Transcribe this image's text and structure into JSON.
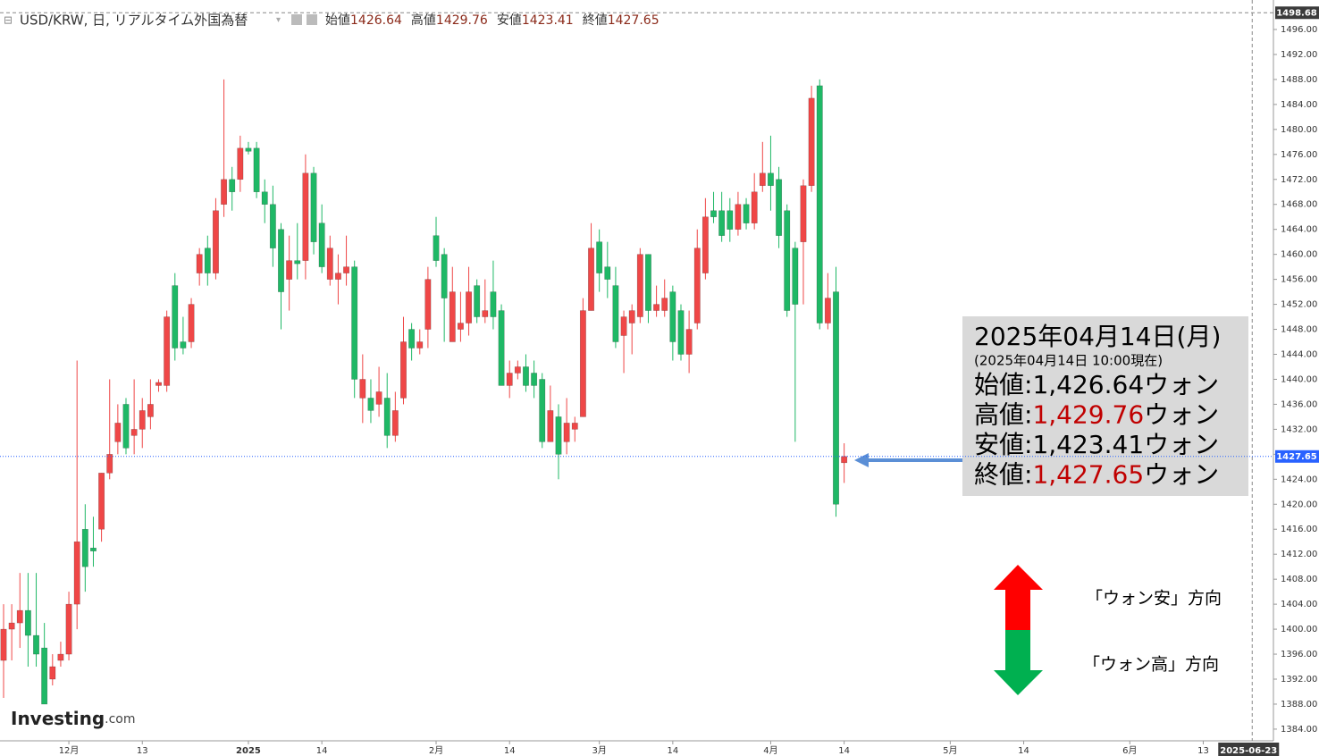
{
  "chart_data": {
    "type": "candlestick",
    "symbol": "USD/KRW, 日, リアルタイム外国為替",
    "ohlc_labels": [
      "始値",
      "高値",
      "安値",
      "終値"
    ],
    "up_color": "#ef4747",
    "down_color": "#1fb866",
    "open": [
      1395,
      1400,
      1401,
      1403,
      1399,
      1397,
      1392,
      1395,
      1396,
      1404,
      1416,
      1413,
      1416,
      1425,
      1430,
      1436,
      1431,
      1432,
      1434,
      1439,
      1439,
      1455,
      1446,
      1446,
      1457,
      1461,
      1457,
      1468,
      1472,
      1472,
      1477,
      1477,
      1470,
      1468,
      1464,
      1456,
      1459,
      1459,
      1473,
      1465,
      1456,
      1456,
      1457,
      1458,
      1437,
      1437,
      1436,
      1437,
      1431,
      1437,
      1448,
      1445,
      1448,
      1463,
      1460,
      1446,
      1448,
      1449,
      1455,
      1450,
      1454,
      1451,
      1439,
      1441,
      1442,
      1441,
      1440,
      1430,
      1434,
      1430,
      1432,
      1434,
      1451,
      1462,
      1458,
      1455,
      1447,
      1449,
      1450,
      1460,
      1451,
      1451,
      1454,
      1451,
      1444,
      1449,
      1457,
      1467,
      1467,
      1467,
      1464,
      1468,
      1465,
      1471,
      1473,
      1472,
      1467,
      1461,
      1462,
      1471,
      1487,
      1449,
      1454,
      1426.64
    ],
    "high": [
      1404,
      1404,
      1409,
      1409,
      1409,
      1401,
      1396,
      1398,
      1406,
      1443,
      1420,
      1418,
      1425,
      1440,
      1436,
      1437,
      1440,
      1437,
      1440,
      1440,
      1451,
      1457,
      1450,
      1453,
      1461,
      1463,
      1469,
      1488,
      1474,
      1479,
      1478,
      1478,
      1472,
      1471,
      1465,
      1463,
      1465,
      1476,
      1474,
      1468,
      1463,
      1460,
      1463,
      1459,
      1444,
      1440,
      1442,
      1441,
      1438,
      1450,
      1449,
      1448,
      1458,
      1466,
      1461,
      1458,
      1454,
      1458,
      1456,
      1456,
      1459,
      1452,
      1443,
      1443,
      1444,
      1443,
      1441,
      1439,
      1436,
      1437,
      1434,
      1453,
      1465,
      1464,
      1462,
      1458,
      1451,
      1452,
      1461,
      1460,
      1455,
      1456,
      1455,
      1452,
      1451,
      1464,
      1469,
      1470,
      1470,
      1469,
      1470,
      1469,
      1473,
      1478,
      1479,
      1474,
      1468,
      1462,
      1472,
      1487,
      1488,
      1457,
      1458,
      1429.76
    ],
    "low": [
      1389,
      1395,
      1397,
      1394,
      1394,
      1388,
      1391,
      1394,
      1395,
      1400,
      1406,
      1410,
      1414,
      1424,
      1428,
      1428,
      1428,
      1429,
      1432,
      1438,
      1438,
      1443,
      1444,
      1445,
      1455,
      1455,
      1456,
      1466,
      1467,
      1470,
      1476,
      1469,
      1465,
      1458,
      1448,
      1451,
      1456,
      1456,
      1460,
      1457,
      1455,
      1452,
      1455,
      1437,
      1433,
      1433,
      1434,
      1429,
      1430,
      1436,
      1443,
      1444,
      1445,
      1458,
      1446,
      1446,
      1446,
      1447,
      1449,
      1449,
      1448,
      1439,
      1437,
      1440,
      1438,
      1437,
      1429,
      1430,
      1424,
      1428,
      1430,
      1434,
      1451,
      1454,
      1453,
      1445,
      1441,
      1444,
      1449,
      1449,
      1450,
      1450,
      1443,
      1443,
      1441,
      1448,
      1456,
      1465,
      1462,
      1462,
      1463,
      1464,
      1464,
      1470,
      1467,
      1461,
      1450,
      1430,
      1452,
      1470,
      1448,
      1448,
      1418,
      1423.41
    ],
    "close": [
      1400,
      1401,
      1403,
      1399,
      1396,
      1388,
      1394,
      1396,
      1404,
      1414,
      1410,
      1412.5,
      1425,
      1428,
      1433,
      1429,
      1432,
      1435,
      1436,
      1439.5,
      1450,
      1445,
      1445,
      1452,
      1460,
      1457,
      1467,
      1472,
      1470,
      1477,
      1476.5,
      1470,
      1468,
      1461,
      1454,
      1459,
      1458.5,
      1473,
      1462,
      1458,
      1461,
      1457,
      1458,
      1440,
      1440,
      1435,
      1438,
      1431,
      1435,
      1446,
      1445,
      1446,
      1456,
      1459,
      1453,
      1454,
      1449,
      1454,
      1450,
      1451,
      1450,
      1439,
      1441,
      1442,
      1439,
      1439,
      1430,
      1435,
      1428,
      1433,
      1433,
      1451,
      1461,
      1457,
      1456,
      1446,
      1450,
      1451,
      1460,
      1451,
      1452,
      1453,
      1446,
      1444,
      1448,
      1461,
      1466,
      1466,
      1463,
      1464,
      1468,
      1465,
      1470,
      1473,
      1471,
      1463,
      1451,
      1452,
      1471,
      1485,
      1449,
      1453,
      1420,
      1427.65
    ],
    "xlim": [
      -0.438,
      155.6
    ],
    "xticks": [
      {
        "value": 8,
        "label": "12月"
      },
      {
        "value": 17,
        "label": "13"
      },
      {
        "value": 30,
        "label": "2025"
      },
      {
        "value": 39,
        "label": "14"
      },
      {
        "value": 53,
        "label": "2月"
      },
      {
        "value": 62,
        "label": "14"
      },
      {
        "value": 73,
        "label": "3月"
      },
      {
        "value": 82,
        "label": "14"
      },
      {
        "value": 94,
        "label": "4月"
      },
      {
        "value": 103,
        "label": "14"
      },
      {
        "value": 116,
        "label": "5月"
      },
      {
        "value": 125,
        "label": "14"
      },
      {
        "value": 138,
        "label": "6月"
      },
      {
        "value": 147,
        "label": "13"
      }
    ],
    "ylim": [
      1382.13,
      1500.72
    ],
    "yticks": [
      {
        "value": 1384,
        "label": "1384.00"
      },
      {
        "value": 1388,
        "label": "1388.00"
      },
      {
        "value": 1392,
        "label": "1392.00"
      },
      {
        "value": 1396,
        "label": "1396.00"
      },
      {
        "value": 1400,
        "label": "1400.00"
      },
      {
        "value": 1404,
        "label": "1404.00"
      },
      {
        "value": 1408,
        "label": "1408.00"
      },
      {
        "value": 1412,
        "label": "1412.00"
      },
      {
        "value": 1416,
        "label": "1416.00"
      },
      {
        "value": 1420,
        "label": "1420.00"
      },
      {
        "value": 1424,
        "label": "1424.00"
      },
      {
        "value": 1428,
        "label": "1428.00"
      },
      {
        "value": 1432,
        "label": "1432.00"
      },
      {
        "value": 1436,
        "label": "1436.00"
      },
      {
        "value": 1440,
        "label": "1440.00"
      },
      {
        "value": 1444,
        "label": "1444.00"
      },
      {
        "value": 1448,
        "label": "1448.00"
      },
      {
        "value": 1452,
        "label": "1452.00"
      },
      {
        "value": 1456,
        "label": "1456.00"
      },
      {
        "value": 1460,
        "label": "1460.00"
      },
      {
        "value": 1464,
        "label": "1464.00"
      },
      {
        "value": 1468,
        "label": "1468.00"
      },
      {
        "value": 1472,
        "label": "1472.00"
      },
      {
        "value": 1476,
        "label": "1476.00"
      },
      {
        "value": 1480,
        "label": "1480.00"
      },
      {
        "value": 1484,
        "label": "1484.00"
      },
      {
        "value": 1488,
        "label": "1488.00"
      },
      {
        "value": 1492,
        "label": "1492.00"
      },
      {
        "value": 1496,
        "label": "1496.00"
      }
    ],
    "last_price": 1427.65,
    "crosshair": {
      "price": 1498.68,
      "x": {
        "value": 153,
        "label": "2025-06-23"
      }
    },
    "annotation": {
      "date": "2025年04月14日(月)",
      "asof": "(2025年04月14日 10:00現在)",
      "rows": [
        {
          "label": "始値",
          "sep": ":",
          "value": "1,426.64",
          "unit": "ウォン",
          "color": "#000000"
        },
        {
          "label": "高値",
          "sep": ":",
          "value": "1,429.76",
          "unit": "ウォン",
          "color": "#c00000"
        },
        {
          "label": "安値",
          "sep": ":",
          "value": "1,423.41",
          "unit": "ウォン",
          "color": "#000000"
        },
        {
          "label": "終値",
          "sep": ":",
          "value": "1,427.65",
          "unit": "ウォン",
          "color": "#c00000"
        }
      ]
    },
    "direction_up": "「ウォン安」方向",
    "direction_down": "「ウォン高」方向",
    "logo": {
      "name": "Investing",
      "suffix": ".com"
    }
  }
}
